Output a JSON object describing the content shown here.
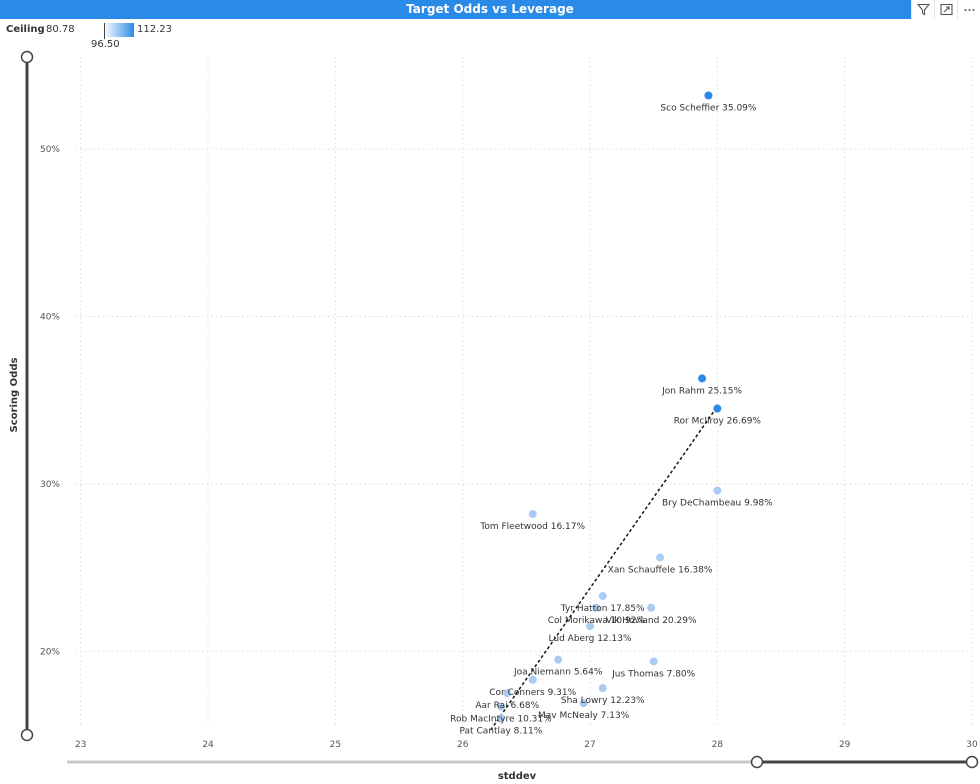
{
  "header": {
    "title": "Target Odds vs Leverage",
    "icons": [
      "filter-icon",
      "focus-mode-icon",
      "more-options-icon"
    ]
  },
  "legend": {
    "label": "Ceiling",
    "min": "80.78",
    "mid": "96.50",
    "max": "112.23",
    "color_low": "#ffffff",
    "color_high": "#2a8ae8"
  },
  "chart_data": {
    "type": "scatter",
    "title": "Target Odds vs Leverage",
    "xlabel": "stddev",
    "ylabel": "Scoring Odds",
    "xlim": [
      22.9,
      30.0
    ],
    "ylim": [
      0.15,
      0.555
    ],
    "xticks": [
      "23",
      "24",
      "25",
      "26",
      "27",
      "28",
      "29",
      "30"
    ],
    "yticks": [
      "20%",
      "30%",
      "40%",
      "50%"
    ],
    "grid": true,
    "point_colors": {
      "high": "#2a8ae8",
      "low": "#a9cdf2"
    },
    "trend_line": {
      "x": [
        26.22,
        27.97
      ],
      "y": [
        0.153,
        0.343
      ]
    },
    "points": [
      {
        "name": "Sco Scheffier 35.09%",
        "x": 27.93,
        "y": 0.532,
        "level": "high"
      },
      {
        "name": "Jon Rahm 25.15%",
        "x": 27.88,
        "y": 0.363,
        "level": "high"
      },
      {
        "name": "Ror McIlroy 26.69%",
        "x": 28.0,
        "y": 0.345,
        "level": "high"
      },
      {
        "name": "Bry DeChambeau 9.98%",
        "x": 28.0,
        "y": 0.296,
        "level": "low"
      },
      {
        "name": "Tom Fleetwood 16.17%",
        "x": 26.55,
        "y": 0.282,
        "level": "low"
      },
      {
        "name": "Xan Schauffele 16.38%",
        "x": 27.55,
        "y": 0.256,
        "level": "low"
      },
      {
        "name": "Tyr Hatton 17.85%",
        "x": 27.1,
        "y": 0.233,
        "level": "low"
      },
      {
        "name": "Col Morikawa 10.92%",
        "x": 27.05,
        "y": 0.226,
        "level": "low"
      },
      {
        "name": "Vik Hovland 20.29%",
        "x": 27.48,
        "y": 0.226,
        "level": "low"
      },
      {
        "name": "Lud Aberg 12.13%",
        "x": 27.0,
        "y": 0.215,
        "level": "low"
      },
      {
        "name": "Joa Niemann 5.64%",
        "x": 26.75,
        "y": 0.195,
        "level": "low"
      },
      {
        "name": "Jus Thomas 7.80%",
        "x": 27.5,
        "y": 0.194,
        "level": "low"
      },
      {
        "name": "Cor Conners 9.31%",
        "x": 26.55,
        "y": 0.183,
        "level": "low"
      },
      {
        "name": "Sha Lowry 12.23%",
        "x": 27.1,
        "y": 0.178,
        "level": "low"
      },
      {
        "name": "Aar Rai 6.68%",
        "x": 26.35,
        "y": 0.175,
        "level": "low"
      },
      {
        "name": "Mav McNealy 7.13%",
        "x": 26.95,
        "y": 0.169,
        "level": "low"
      },
      {
        "name": "Rob MacIntyre 10.31%",
        "x": 26.3,
        "y": 0.167,
        "level": "low"
      },
      {
        "name": "Pat Cantlay 8.11%",
        "x": 26.3,
        "y": 0.16,
        "level": "low"
      }
    ]
  }
}
